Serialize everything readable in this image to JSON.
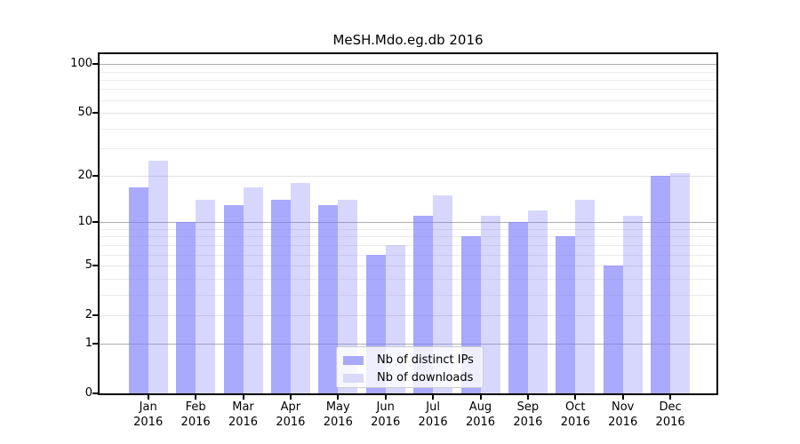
{
  "title": "MeSH.Mdo.eg.db 2016",
  "colors": {
    "ips_bar": "rgba(124,124,252,0.66)",
    "downloads_bar": "rgba(124,124,252,0.30)",
    "ips_solid": "#a9a9fa",
    "downloads_solid": "#d9d9f8",
    "grid_decade": "#aeaeae",
    "grid_major": "#e3e3e3",
    "grid_minor": "#ececec",
    "axis": "#000000",
    "legend_border": "#cccccc"
  },
  "chart_data": {
    "type": "bar",
    "title": "MeSH.Mdo.eg.db 2016",
    "categories": [
      "Jan 2016",
      "Feb 2016",
      "Mar 2016",
      "Apr 2016",
      "May 2016",
      "Jun 2016",
      "Jul 2016",
      "Aug 2016",
      "Sep 2016",
      "Oct 2016",
      "Nov 2016",
      "Dec 2016"
    ],
    "series": [
      {
        "name": "Nb of distinct IPs",
        "values": [
          17,
          10,
          13,
          14,
          13,
          6,
          11,
          8,
          10,
          8,
          5,
          20
        ]
      },
      {
        "name": "Nb of downloads",
        "values": [
          25,
          14,
          17,
          18,
          14,
          7,
          15,
          11,
          12,
          14,
          11,
          21
        ]
      }
    ],
    "xlabel": "",
    "ylabel": "",
    "yscale": "log10(value+1)",
    "yticks": [
      0,
      1,
      2,
      5,
      10,
      20,
      50,
      100
    ],
    "minor_gridlines": [
      3,
      4,
      6,
      7,
      8,
      9,
      30,
      40,
      60,
      70,
      80,
      90
    ],
    "ylim": [
      0,
      115
    ],
    "grid": true,
    "legend_position": "lower center"
  }
}
